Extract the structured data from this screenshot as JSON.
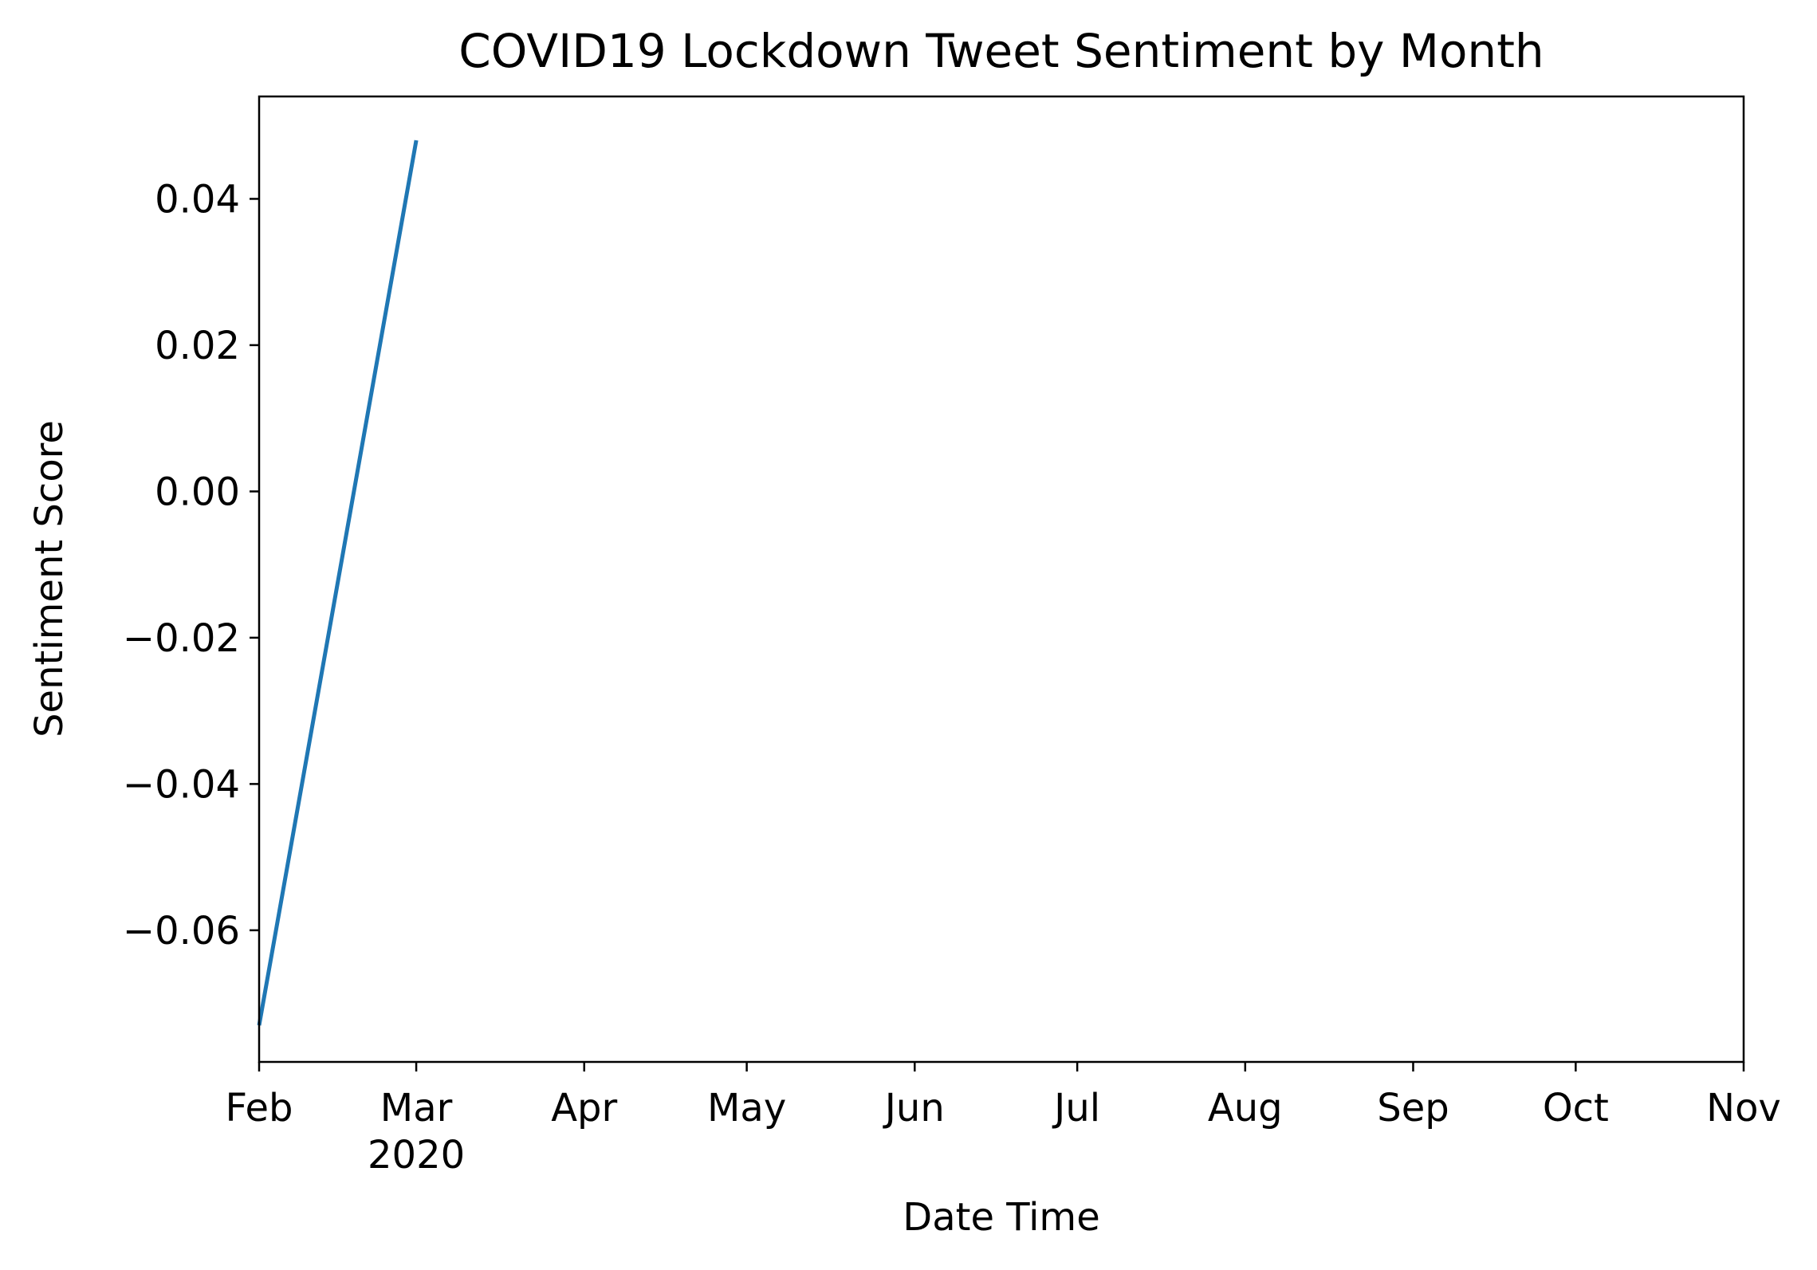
{
  "chart_data": {
    "type": "line",
    "title": "COVID19 Lockdown Tweet Sentiment by Month",
    "xlabel": "Date Time",
    "ylabel": "Sentiment Score",
    "x_tick_labels": [
      "Feb",
      "Mar",
      "Apr",
      "May",
      "Jun",
      "Jul",
      "Aug",
      "Sep",
      "Oct",
      "Nov"
    ],
    "x_tick_dates": [
      "2020-02-01",
      "2020-03-01",
      "2020-04-01",
      "2020-05-01",
      "2020-06-01",
      "2020-07-01",
      "2020-08-01",
      "2020-09-01",
      "2020-10-01",
      "2020-11-01"
    ],
    "x_year_label": "2020",
    "xlim": [
      "2020-02-01",
      "2020-11-01"
    ],
    "y_ticks": [
      -0.06,
      -0.04,
      -0.02,
      0.0,
      0.02,
      0.04
    ],
    "y_tick_labels": [
      "−0.06",
      "−0.04",
      "−0.02",
      "0.00",
      "0.02",
      "0.04"
    ],
    "ylim": [
      -0.078,
      0.054
    ],
    "grid": false,
    "series": [
      {
        "color": "#1f77b4",
        "x": [
          "2020-02-01",
          "2020-03-01"
        ],
        "y": [
          -0.073,
          0.048
        ]
      }
    ]
  }
}
